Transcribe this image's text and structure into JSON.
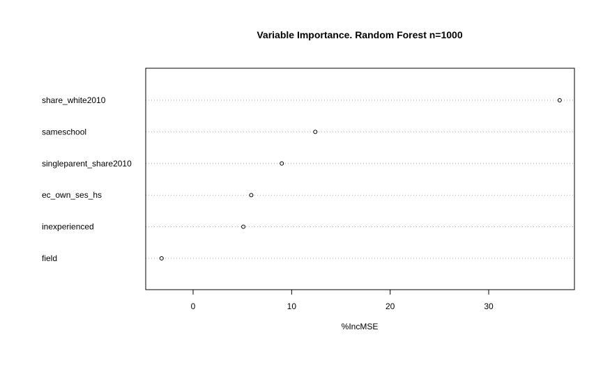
{
  "chart_data": {
    "type": "scatter",
    "title": "Variable Importance. Random Forest n=1000",
    "xlabel": "%IncMSE",
    "ylabel": "",
    "xlim": [
      -5,
      39
    ],
    "xticks": [
      0,
      10,
      20,
      30
    ],
    "grid": "dotted horizontal guide lines",
    "categories": [
      "share_white2010",
      "sameschool",
      "singleparent_share2010",
      "ec_own_ses_hs",
      "inexperienced",
      "field"
    ],
    "values": [
      37.2,
      12.4,
      9.0,
      5.9,
      5.1,
      -3.2
    ]
  }
}
